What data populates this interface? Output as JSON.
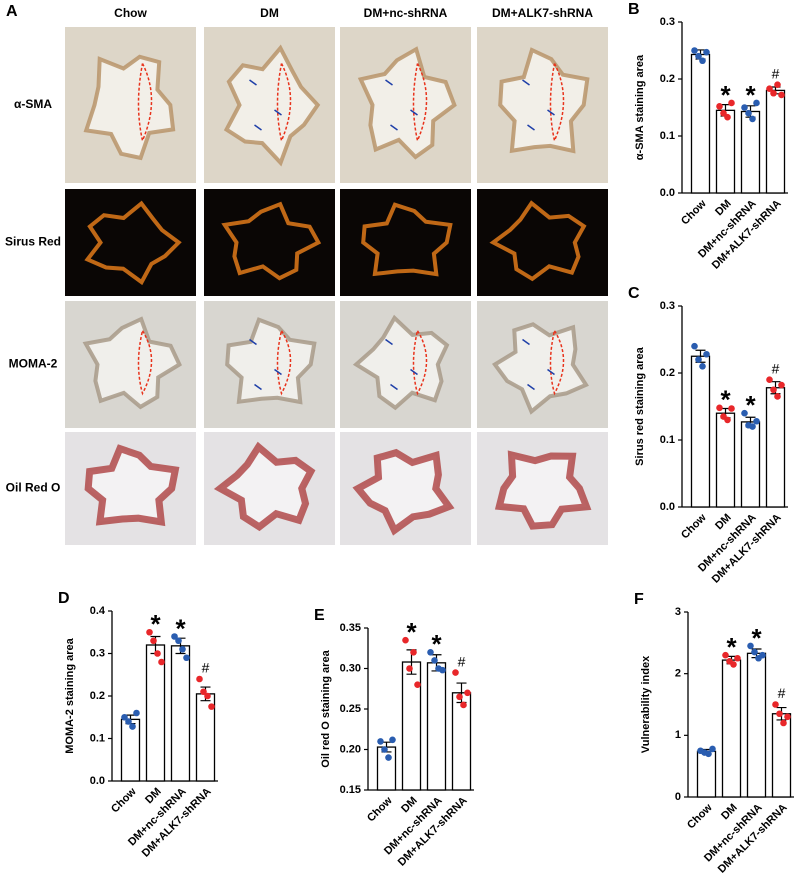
{
  "panel_a": {
    "label": "A",
    "columns": [
      "Chow",
      "DM",
      "DM+nc-shRNA",
      "DM+ALK7-shRNA"
    ],
    "rows": [
      "α-SMA",
      "Sirus Red",
      "MOMA-2",
      "Oil Red O"
    ]
  },
  "chart_data": [
    {
      "type": "bar",
      "panel": "B",
      "ylabel": "α-SMA staining area",
      "categories": [
        "Chow",
        "DM",
        "DM+nc-shRNA",
        "DM+ALK7-shRNA"
      ],
      "values": [
        0.243,
        0.145,
        0.143,
        0.18
      ],
      "errors": [
        0.008,
        0.01,
        0.01,
        0.006
      ],
      "points": [
        [
          0.25,
          0.24,
          0.232,
          0.247
        ],
        [
          0.152,
          0.14,
          0.133,
          0.158
        ],
        [
          0.15,
          0.14,
          0.13,
          0.158
        ],
        [
          0.183,
          0.175,
          0.19,
          0.172
        ]
      ],
      "point_colors": [
        "#2a5db0",
        "#e8272a",
        "#2a5db0",
        "#e8272a"
      ],
      "annotations": [
        null,
        "*",
        "*",
        "#"
      ],
      "ylim": [
        0,
        0.3
      ],
      "yticks": [
        {
          "value": 0,
          "label": "0.0"
        },
        0.1,
        0.2,
        0.3
      ]
    },
    {
      "type": "bar",
      "panel": "C",
      "ylabel": "Sirus red  staining area",
      "categories": [
        "Chow",
        "DM",
        "DM+nc-shRNA",
        "DM+ALK7-shRNA"
      ],
      "values": [
        0.225,
        0.14,
        0.127,
        0.178
      ],
      "errors": [
        0.009,
        0.007,
        0.007,
        0.009
      ],
      "points": [
        [
          0.24,
          0.22,
          0.21,
          0.228
        ],
        [
          0.148,
          0.135,
          0.13,
          0.147
        ],
        [
          0.14,
          0.122,
          0.12,
          0.128
        ],
        [
          0.19,
          0.175,
          0.165,
          0.182
        ]
      ],
      "point_colors": [
        "#2a5db0",
        "#e8272a",
        "#2a5db0",
        "#e8272a"
      ],
      "annotations": [
        null,
        "*",
        "*",
        "#"
      ],
      "ylim": [
        0,
        0.3
      ],
      "yticks": [
        {
          "value": 0,
          "label": "0.0"
        },
        0.1,
        0.2,
        0.3
      ]
    },
    {
      "type": "bar",
      "panel": "D",
      "ylabel": "MOMA-2  staining area",
      "categories": [
        "Chow",
        "DM",
        "DM+nc-shRNA",
        "DM+ALK7-shRNA"
      ],
      "values": [
        0.145,
        0.32,
        0.318,
        0.205
      ],
      "errors": [
        0.01,
        0.02,
        0.018,
        0.016
      ],
      "points": [
        [
          0.15,
          0.14,
          0.128,
          0.16
        ],
        [
          0.35,
          0.33,
          0.3,
          0.28
        ],
        [
          0.34,
          0.33,
          0.31,
          0.29
        ],
        [
          0.24,
          0.21,
          0.2,
          0.175
        ]
      ],
      "point_colors": [
        "#2a5db0",
        "#e8272a",
        "#2a5db0",
        "#e8272a"
      ],
      "annotations": [
        null,
        "*",
        "*",
        "#"
      ],
      "ylim": [
        0,
        0.4
      ],
      "yticks": [
        {
          "value": 0,
          "label": "0.0"
        },
        0.1,
        0.2,
        0.3,
        0.4
      ]
    },
    {
      "type": "bar",
      "panel": "E",
      "ylabel": "Oil red O staining area",
      "categories": [
        "Chow",
        "DM",
        "DM+nc-shRNA",
        "DM+ALK7-shRNA"
      ],
      "values": [
        0.203,
        0.308,
        0.307,
        0.27
      ],
      "errors": [
        0.006,
        0.015,
        0.01,
        0.012
      ],
      "points": [
        [
          0.21,
          0.2,
          0.19,
          0.212
        ],
        [
          0.335,
          0.3,
          0.32,
          0.28
        ],
        [
          0.32,
          0.31,
          0.3,
          0.298
        ],
        [
          0.295,
          0.265,
          0.255,
          0.27
        ]
      ],
      "point_colors": [
        "#2a5db0",
        "#e8272a",
        "#2a5db0",
        "#e8272a"
      ],
      "annotations": [
        null,
        "*",
        "*",
        "#"
      ],
      "ylim": [
        0.15,
        0.35
      ],
      "yticks": [
        0.15,
        {
          "value": 0.2,
          "label": "0.20"
        },
        0.25,
        {
          "value": 0.3,
          "label": "0.30"
        },
        0.35
      ]
    },
    {
      "type": "bar",
      "panel": "F",
      "ylabel": "Vulnerability index",
      "categories": [
        "Chow",
        "DM",
        "DM+nc-shRNA",
        "DM+ALK7-shRNA"
      ],
      "values": [
        0.74,
        2.22,
        2.33,
        1.35
      ],
      "errors": [
        0.03,
        0.06,
        0.07,
        0.1
      ],
      "points": [
        [
          0.75,
          0.72,
          0.7,
          0.78
        ],
        [
          2.3,
          2.2,
          2.15,
          2.25
        ],
        [
          2.45,
          2.35,
          2.25,
          2.3
        ],
        [
          1.5,
          1.35,
          1.2,
          1.3
        ]
      ],
      "point_colors": [
        "#2a5db0",
        "#e8272a",
        "#2a5db0",
        "#e8272a"
      ],
      "annotations": [
        null,
        "*",
        "*",
        "#"
      ],
      "ylim": [
        0,
        3
      ],
      "yticks": [
        0,
        1,
        2,
        3
      ]
    }
  ]
}
